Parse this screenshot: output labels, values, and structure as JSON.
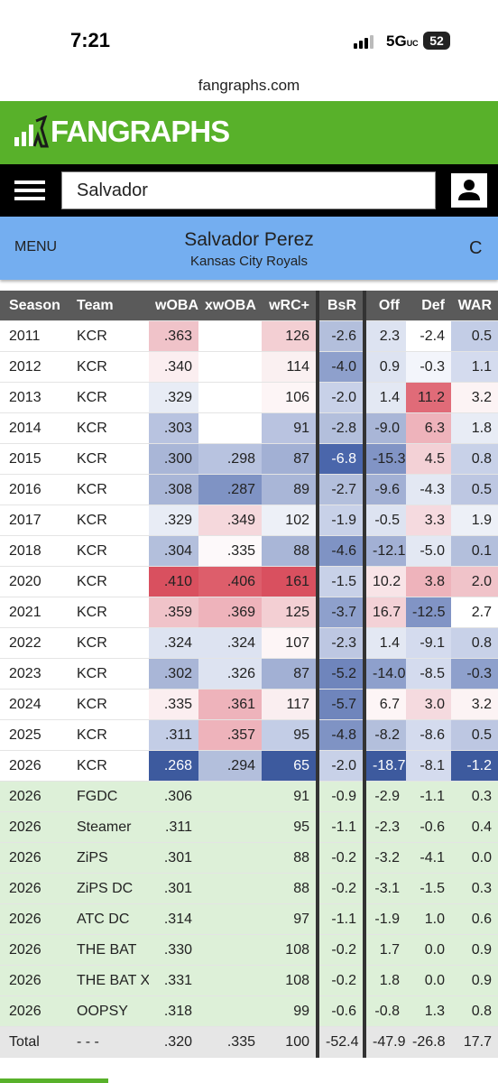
{
  "status_bar": {
    "time": "7:21",
    "network": "5G",
    "network_suffix": "UC",
    "battery": "52"
  },
  "url": "fangraphs.com",
  "logo": "FANGRAPHS",
  "search": "Salvador",
  "menu": "MENU",
  "player": {
    "name": "Salvador Perez",
    "team": "Kansas City Royals",
    "position": "C"
  },
  "table": {
    "columns": [
      "Season",
      "Team",
      "wOBA",
      "xwOBA",
      "wRC+",
      "BsR",
      "Off",
      "Def",
      "WAR"
    ],
    "seasons": [
      {
        "cells": [
          "2011",
          "KCR",
          ".363",
          null,
          "126",
          "-2.6",
          "2.3",
          "-2.4",
          "0.5"
        ],
        "colors": [
          "#f0c3c9",
          "#ffffff",
          "#f3cfd3",
          "#b3bfdc",
          "#dde3f1",
          "#ffffff",
          "#c3cde6"
        ]
      },
      {
        "cells": [
          "2012",
          "KCR",
          ".340",
          null,
          "114",
          "-4.0",
          "0.9",
          "-0.3",
          "1.1"
        ],
        "colors": [
          "#fbeef0",
          "#ffffff",
          "#faf0f1",
          "#8ea0cc",
          "#dde3f1",
          "#f3f5fb",
          "#d4dbee"
        ]
      },
      {
        "cells": [
          "2013",
          "KCR",
          ".329",
          null,
          "106",
          "-2.0",
          "1.4",
          "11.2",
          "3.2"
        ],
        "colors": [
          "#e8ecf5",
          "#ffffff",
          "#fdf5f6",
          "#c8d1e8",
          "#e3e8f3",
          "#e06b78",
          "#fcf3f4"
        ]
      },
      {
        "cells": [
          "2014",
          "KCR",
          ".303",
          null,
          "91",
          "-2.8",
          "-9.0",
          "6.3",
          "1.8"
        ],
        "colors": [
          "#b8c3e0",
          "#ffffff",
          "#b9c3e0",
          "#b3bfdc",
          "#a9b6d7",
          "#eeb3bb",
          "#e8ecf5"
        ]
      },
      {
        "cells": [
          "2015",
          "KCR",
          ".300",
          ".298",
          "87",
          "-6.8",
          "-15.3",
          "4.5",
          "0.8"
        ],
        "colors": [
          "#a9b6d7",
          "#b8c3e0",
          "#a2b0d4",
          "#4a66ab",
          "#8194c5",
          "#f3d1d6",
          "#c8d1e8"
        ]
      },
      {
        "cells": [
          "2016",
          "KCR",
          ".308",
          ".287",
          "89",
          "-2.7",
          "-9.6",
          "-4.3",
          "0.5"
        ],
        "colors": [
          "#a9b6d7",
          "#7f93c4",
          "#a9b6d7",
          "#b3bfdc",
          "#a2b0d4",
          "#e3e8f3",
          "#bdc7e2"
        ]
      },
      {
        "cells": [
          "2017",
          "KCR",
          ".329",
          ".349",
          "102",
          "-1.9",
          "-0.5",
          "3.3",
          "1.9"
        ],
        "colors": [
          "#e8ecf5",
          "#f5d8dc",
          "#edf0f7",
          "#c8d1e8",
          "#dde3f1",
          "#f5dadf",
          "#edf0f7"
        ]
      },
      {
        "cells": [
          "2018",
          "KCR",
          ".304",
          ".335",
          "88",
          "-4.6",
          "-12.1",
          "-5.0",
          "0.1"
        ],
        "colors": [
          "#b3bfdc",
          "#fdf9fa",
          "#a9b6d7",
          "#7f93c4",
          "#a2b0d4",
          "#e3e8f3",
          "#b3bfdc"
        ]
      },
      {
        "cells": [
          "2020",
          "KCR",
          ".410",
          ".406",
          "161",
          "-1.5",
          "10.2",
          "3.8",
          "2.0"
        ],
        "colors": [
          "#d9505f",
          "#dd5e6b",
          "#d9505f",
          "#c8d1e8",
          "#f8e4e7",
          "#eeb3bb",
          "#f0c3c9"
        ]
      },
      {
        "cells": [
          "2021",
          "KCR",
          ".359",
          ".369",
          "125",
          "-3.7",
          "16.7",
          "-12.5",
          "2.7"
        ],
        "colors": [
          "#f0c3c9",
          "#eeb3bb",
          "#f3cfd3",
          "#8ea0cc",
          "#f3d1d6",
          "#8194c5",
          "#ffffff"
        ]
      },
      {
        "cells": [
          "2022",
          "KCR",
          ".324",
          ".324",
          "107",
          "-2.3",
          "1.4",
          "-9.1",
          "0.8"
        ],
        "colors": [
          "#dde3f1",
          "#dde3f1",
          "#fdf5f6",
          "#bdc7e2",
          "#e3e8f3",
          "#d4dbee",
          "#c8d1e8"
        ]
      },
      {
        "cells": [
          "2023",
          "KCR",
          ".302",
          ".326",
          "87",
          "-5.2",
          "-14.0",
          "-8.5",
          "-0.3"
        ],
        "colors": [
          "#a9b6d7",
          "#dde3f1",
          "#a2b0d4",
          "#6f85bc",
          "#8ea0cc",
          "#d4dbee",
          "#8ea0cc"
        ]
      },
      {
        "cells": [
          "2024",
          "KCR",
          ".335",
          ".361",
          "117",
          "-5.7",
          "6.7",
          "3.0",
          "3.2"
        ],
        "colors": [
          "#fbeef0",
          "#eeb3bb",
          "#faeef0",
          "#6f85bc",
          "#fdf5f6",
          "#f5dadf",
          "#fcf3f4"
        ]
      },
      {
        "cells": [
          "2025",
          "KCR",
          ".311",
          ".357",
          "95",
          "-4.8",
          "-8.2",
          "-8.6",
          "0.5"
        ],
        "colors": [
          "#c3cde6",
          "#eeb3bb",
          "#c3cde6",
          "#7f93c4",
          "#b3bfdc",
          "#d4dbee",
          "#bdc7e2"
        ]
      },
      {
        "cells": [
          "2026",
          "KCR",
          ".268",
          ".294",
          "65",
          "-2.0",
          "-18.7",
          "-8.1",
          "-1.2"
        ],
        "colors": [
          "#3d5a9e",
          "#b3bfdc",
          "#3d5a9e",
          "#c8d1e8",
          "#3d5a9e",
          "#d4dbee",
          "#3d5a9e"
        ]
      }
    ],
    "projections": [
      [
        "2026",
        "FGDC",
        ".306",
        null,
        "91",
        "-0.9",
        "-2.9",
        "-1.1",
        "0.3"
      ],
      [
        "2026",
        "Steamer",
        ".311",
        null,
        "95",
        "-1.1",
        "-2.3",
        "-0.6",
        "0.4"
      ],
      [
        "2026",
        "ZiPS",
        ".301",
        null,
        "88",
        "-0.2",
        "-3.2",
        "-4.1",
        "0.0"
      ],
      [
        "2026",
        "ZiPS DC",
        ".301",
        null,
        "88",
        "-0.2",
        "-3.1",
        "-1.5",
        "0.3"
      ],
      [
        "2026",
        "ATC DC",
        ".314",
        null,
        "97",
        "-1.1",
        "-1.9",
        "1.0",
        "0.6"
      ],
      [
        "2026",
        "THE BAT",
        ".330",
        null,
        "108",
        "-0.2",
        "1.7",
        "0.0",
        "0.9"
      ],
      [
        "2026",
        "THE BAT X",
        ".331",
        null,
        "108",
        "-0.2",
        "1.8",
        "0.0",
        "0.9"
      ],
      [
        "2026",
        "OOPSY",
        ".318",
        null,
        "99",
        "-0.6",
        "-0.8",
        "1.3",
        "0.8"
      ]
    ],
    "total": [
      "Total",
      "- - -",
      ".320",
      ".335",
      "100",
      "-52.4",
      "-47.9",
      "-26.8",
      "17.7"
    ]
  }
}
